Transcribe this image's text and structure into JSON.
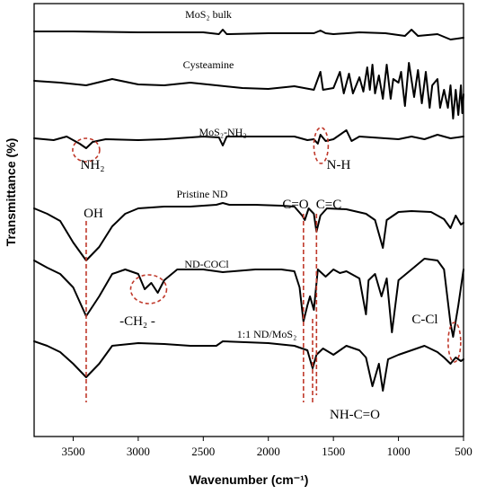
{
  "chart_data": {
    "type": "line",
    "xlabel": "Wavenumber (cm⁻¹)",
    "ylabel": "Transmittance (%)",
    "xlim": [
      3800,
      500
    ],
    "x_reversed": true,
    "y_ticks_shown": false,
    "xticks": [
      3500,
      3000,
      2500,
      2000,
      1500,
      1000,
      500
    ],
    "series": [
      {
        "name": "MoS₂ bulk",
        "points": [
          [
            3800,
            35
          ],
          [
            3500,
            35
          ],
          [
            3000,
            36
          ],
          [
            2500,
            36
          ],
          [
            2380,
            38
          ],
          [
            2350,
            33
          ],
          [
            2320,
            38
          ],
          [
            2000,
            37
          ],
          [
            1650,
            37
          ],
          [
            1600,
            34
          ],
          [
            1560,
            37
          ],
          [
            1500,
            38
          ],
          [
            1300,
            36
          ],
          [
            1100,
            37
          ],
          [
            950,
            40
          ],
          [
            900,
            33
          ],
          [
            850,
            40
          ],
          [
            700,
            38
          ],
          [
            600,
            44
          ],
          [
            500,
            42
          ]
        ]
      },
      {
        "name": "Cysteamine",
        "points": [
          [
            3800,
            90
          ],
          [
            3600,
            92
          ],
          [
            3400,
            95
          ],
          [
            3200,
            88
          ],
          [
            3000,
            94
          ],
          [
            2800,
            95
          ],
          [
            2600,
            92
          ],
          [
            2400,
            95
          ],
          [
            2200,
            98
          ],
          [
            2000,
            99
          ],
          [
            1800,
            96
          ],
          [
            1650,
            100
          ],
          [
            1600,
            80
          ],
          [
            1580,
            100
          ],
          [
            1500,
            98
          ],
          [
            1450,
            80
          ],
          [
            1420,
            104
          ],
          [
            1380,
            82
          ],
          [
            1350,
            104
          ],
          [
            1300,
            86
          ],
          [
            1270,
            102
          ],
          [
            1240,
            75
          ],
          [
            1220,
            100
          ],
          [
            1200,
            72
          ],
          [
            1180,
            104
          ],
          [
            1150,
            84
          ],
          [
            1120,
            110
          ],
          [
            1090,
            72
          ],
          [
            1060,
            110
          ],
          [
            1040,
            88
          ],
          [
            1000,
            92
          ],
          [
            980,
            80
          ],
          [
            950,
            118
          ],
          [
            920,
            70
          ],
          [
            880,
            108
          ],
          [
            850,
            78
          ],
          [
            820,
            115
          ],
          [
            790,
            80
          ],
          [
            760,
            120
          ],
          [
            740,
            95
          ],
          [
            700,
            88
          ],
          [
            680,
            120
          ],
          [
            650,
            100
          ],
          [
            620,
            120
          ],
          [
            600,
            95
          ],
          [
            580,
            132
          ],
          [
            560,
            100
          ],
          [
            540,
            128
          ],
          [
            520,
            95
          ],
          [
            510,
            126
          ],
          [
            500,
            105
          ]
        ]
      },
      {
        "name": "MoS₂-NH₂",
        "points": [
          [
            3800,
            154
          ],
          [
            3650,
            156
          ],
          [
            3550,
            152
          ],
          [
            3450,
            160
          ],
          [
            3400,
            165
          ],
          [
            3350,
            158
          ],
          [
            3250,
            155
          ],
          [
            3000,
            156
          ],
          [
            2800,
            155
          ],
          [
            2500,
            152
          ],
          [
            2380,
            153
          ],
          [
            2350,
            162
          ],
          [
            2320,
            152
          ],
          [
            2000,
            152
          ],
          [
            1800,
            152
          ],
          [
            1700,
            156
          ],
          [
            1650,
            155
          ],
          [
            1620,
            160
          ],
          [
            1600,
            150
          ],
          [
            1560,
            157
          ],
          [
            1500,
            155
          ],
          [
            1400,
            145
          ],
          [
            1360,
            157
          ],
          [
            1300,
            152
          ],
          [
            1100,
            154
          ],
          [
            1000,
            155
          ],
          [
            900,
            152
          ],
          [
            800,
            155
          ],
          [
            700,
            150
          ],
          [
            600,
            154
          ],
          [
            500,
            152
          ]
        ]
      },
      {
        "name": "Pristine ND",
        "points": [
          [
            3800,
            232
          ],
          [
            3700,
            238
          ],
          [
            3600,
            246
          ],
          [
            3500,
            270
          ],
          [
            3400,
            290
          ],
          [
            3300,
            275
          ],
          [
            3200,
            252
          ],
          [
            3100,
            238
          ],
          [
            3000,
            232
          ],
          [
            2800,
            230
          ],
          [
            2600,
            230
          ],
          [
            2400,
            228
          ],
          [
            2350,
            226
          ],
          [
            2300,
            228
          ],
          [
            2100,
            228
          ],
          [
            1900,
            229
          ],
          [
            1800,
            230
          ],
          [
            1740,
            240
          ],
          [
            1720,
            245
          ],
          [
            1690,
            232
          ],
          [
            1650,
            238
          ],
          [
            1630,
            258
          ],
          [
            1600,
            240
          ],
          [
            1550,
            232
          ],
          [
            1400,
            233
          ],
          [
            1250,
            238
          ],
          [
            1180,
            245
          ],
          [
            1120,
            276
          ],
          [
            1090,
            245
          ],
          [
            1000,
            236
          ],
          [
            900,
            235
          ],
          [
            750,
            236
          ],
          [
            650,
            244
          ],
          [
            600,
            254
          ],
          [
            560,
            240
          ],
          [
            520,
            250
          ],
          [
            500,
            248
          ]
        ]
      },
      {
        "name": "ND-COCl",
        "points": [
          [
            3800,
            290
          ],
          [
            3700,
            298
          ],
          [
            3600,
            305
          ],
          [
            3500,
            320
          ],
          [
            3400,
            352
          ],
          [
            3300,
            330
          ],
          [
            3200,
            305
          ],
          [
            3100,
            300
          ],
          [
            3000,
            305
          ],
          [
            2950,
            322
          ],
          [
            2900,
            315
          ],
          [
            2850,
            326
          ],
          [
            2800,
            312
          ],
          [
            2700,
            300
          ],
          [
            2500,
            300
          ],
          [
            2350,
            303
          ],
          [
            2100,
            300
          ],
          [
            1900,
            300
          ],
          [
            1800,
            302
          ],
          [
            1760,
            320
          ],
          [
            1730,
            358
          ],
          [
            1700,
            340
          ],
          [
            1680,
            330
          ],
          [
            1650,
            345
          ],
          [
            1620,
            300
          ],
          [
            1560,
            308
          ],
          [
            1500,
            300
          ],
          [
            1450,
            304
          ],
          [
            1400,
            302
          ],
          [
            1300,
            310
          ],
          [
            1250,
            350
          ],
          [
            1230,
            312
          ],
          [
            1180,
            305
          ],
          [
            1130,
            330
          ],
          [
            1090,
            310
          ],
          [
            1050,
            370
          ],
          [
            1000,
            312
          ],
          [
            900,
            300
          ],
          [
            800,
            288
          ],
          [
            700,
            290
          ],
          [
            650,
            300
          ],
          [
            600,
            360
          ],
          [
            580,
            375
          ],
          [
            540,
            340
          ],
          [
            500,
            300
          ]
        ]
      },
      {
        "name": "1:1 ND/MoS₂",
        "points": [
          [
            3800,
            380
          ],
          [
            3700,
            385
          ],
          [
            3600,
            392
          ],
          [
            3500,
            405
          ],
          [
            3400,
            420
          ],
          [
            3300,
            405
          ],
          [
            3200,
            385
          ],
          [
            3000,
            382
          ],
          [
            2800,
            383
          ],
          [
            2600,
            385
          ],
          [
            2400,
            385
          ],
          [
            2350,
            380
          ],
          [
            2000,
            382
          ],
          [
            1800,
            385
          ],
          [
            1740,
            388
          ],
          [
            1700,
            390
          ],
          [
            1660,
            410
          ],
          [
            1630,
            395
          ],
          [
            1580,
            388
          ],
          [
            1500,
            395
          ],
          [
            1400,
            385
          ],
          [
            1300,
            390
          ],
          [
            1250,
            398
          ],
          [
            1200,
            430
          ],
          [
            1150,
            405
          ],
          [
            1120,
            435
          ],
          [
            1080,
            400
          ],
          [
            1000,
            395
          ],
          [
            900,
            390
          ],
          [
            800,
            385
          ],
          [
            700,
            392
          ],
          [
            650,
            398
          ],
          [
            600,
            405
          ],
          [
            560,
            398
          ],
          [
            520,
            402
          ],
          [
            500,
            400
          ]
        ]
      }
    ],
    "annotations": {
      "nh2": "NH₂",
      "nh": "N-H",
      "oh": "OH",
      "co": "C=O",
      "cc": "C=C",
      "ch2": "-CH₂ -",
      "ccl": "C-Cl",
      "nhco": "NH-C=O"
    },
    "marker_color": "#c0392b"
  }
}
